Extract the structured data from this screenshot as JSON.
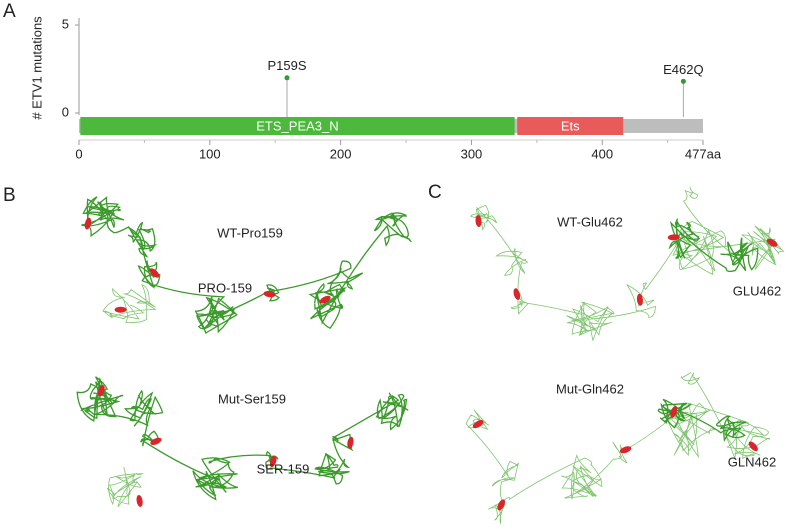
{
  "chart_data": {
    "type": "lollipop",
    "panel": "A",
    "ylabel": "# ETV1 mutations",
    "x": [
      159,
      462
    ],
    "values": [
      2,
      1.8
    ],
    "labels": [
      "P159S",
      "E462Q"
    ],
    "color": "#2e9a3a",
    "domains": [
      {
        "name": "ETS_PEA3_N",
        "start": 1,
        "end": 333,
        "color": "#4cb93c"
      },
      {
        "name": "Ets",
        "start": 335,
        "end": 416,
        "color": "#e95a5a"
      }
    ],
    "backbone_color": "#bdbdbd",
    "xlim": [
      0,
      477
    ],
    "xticks": [
      0,
      100,
      200,
      300,
      400,
      {
        "value": 477,
        "label": "477aa"
      }
    ],
    "xminorticks": [
      50,
      150,
      250,
      350,
      450
    ],
    "ylim": [
      0,
      5
    ],
    "yticks": [
      0,
      5
    ]
  },
  "panels": [
    {
      "label": "B",
      "structures": [
        {
          "name": "WT-Pro159",
          "site": "PRO-159"
        },
        {
          "name": "Mut-Ser159",
          "site": "SER-159"
        }
      ]
    },
    {
      "label": "C",
      "structures": [
        {
          "name": "WT-Glu462",
          "site": "GLU462"
        },
        {
          "name": "Mut-Gln462",
          "site": "GLN462"
        }
      ]
    }
  ]
}
